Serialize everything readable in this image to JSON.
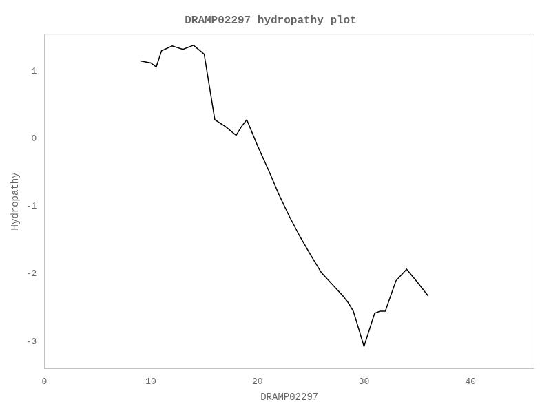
{
  "chart_data": {
    "type": "line",
    "title": "DRAMP02297 hydropathy plot",
    "xlabel": "DRAMP02297",
    "ylabel": "Hydropathy",
    "x": [
      9.0,
      10.0,
      10.5,
      11.0,
      12.0,
      13.0,
      14.0,
      15.0,
      16.0,
      17.0,
      18.0,
      18.5,
      19.0,
      20.0,
      21.0,
      22.0,
      23.0,
      24.0,
      25.0,
      26.0,
      27.0,
      28.0,
      28.5,
      29.0,
      30.0,
      31.0,
      31.5,
      32.0,
      33.0,
      34.0,
      35.0,
      36.0
    ],
    "values": [
      1.15,
      1.12,
      1.06,
      1.3,
      1.37,
      1.32,
      1.38,
      1.25,
      0.28,
      0.18,
      0.05,
      0.18,
      0.28,
      -0.1,
      -0.45,
      -0.82,
      -1.15,
      -1.45,
      -1.72,
      -1.98,
      -2.15,
      -2.32,
      -2.42,
      -2.55,
      -3.07,
      -2.58,
      -2.55,
      -2.55,
      -2.1,
      -1.93,
      -2.12,
      -2.32
    ],
    "color": "#000000",
    "xlim": [
      0,
      46
    ],
    "ylim": [
      -3.4,
      1.55
    ],
    "xticks": [
      0,
      10,
      20,
      30,
      40
    ],
    "yticks": [
      -3,
      -2,
      -1,
      0,
      1
    ],
    "grid": false
  }
}
